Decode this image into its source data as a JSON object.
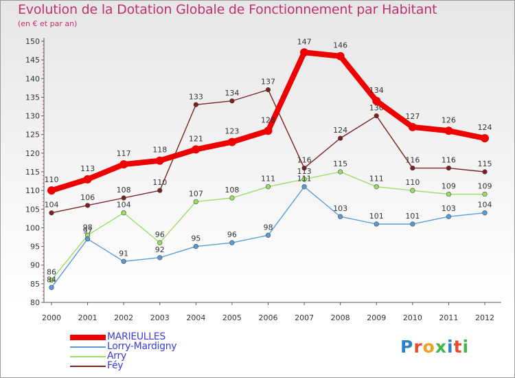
{
  "title": "Evolution de la Dotation Globale de Fonctionnement par Habitant",
  "subtitle": "(en € et par an)",
  "colors": {
    "accent": "#c0306a",
    "legend_text": "#3b3bd6"
  },
  "logo": {
    "letters": [
      "P",
      "r",
      "o",
      "x",
      "i",
      "t",
      "i"
    ],
    "colors": [
      "#2f7fd0",
      "#e84a2a",
      "#f0a020",
      "#43b649",
      "#2f7fd0",
      "#e84a2a",
      "#43b649"
    ]
  },
  "chart_data": {
    "type": "line",
    "x": [
      "2000",
      "2001",
      "2002",
      "2003",
      "2004",
      "2005",
      "2006",
      "2007",
      "2008",
      "2009",
      "2010",
      "2011",
      "2012"
    ],
    "ylim": [
      80,
      150
    ],
    "yticks": [
      80,
      85,
      90,
      95,
      100,
      105,
      110,
      115,
      120,
      125,
      130,
      135,
      140,
      145,
      150
    ],
    "grid": false,
    "legend_position": "bottom-left",
    "series": [
      {
        "name": "MARIEULLES",
        "color": "#ee0000",
        "values": [
          110,
          113,
          117,
          118,
          121,
          123,
          126,
          147,
          146,
          134,
          127,
          126,
          124
        ]
      },
      {
        "name": "Lorry-Mardigny",
        "color": "#5b9bd5",
        "values": [
          84,
          97,
          91,
          92,
          95,
          96,
          98,
          111,
          103,
          101,
          101,
          103,
          104
        ]
      },
      {
        "name": "Arry",
        "color": "#99dd66",
        "values": [
          86,
          98,
          104,
          96,
          107,
          108,
          111,
          113,
          115,
          111,
          110,
          109,
          109
        ]
      },
      {
        "name": "Féy",
        "color": "#7a2020",
        "values": [
          104,
          106,
          108,
          110,
          133,
          134,
          137,
          116,
          124,
          130,
          116,
          116,
          115
        ]
      }
    ]
  }
}
